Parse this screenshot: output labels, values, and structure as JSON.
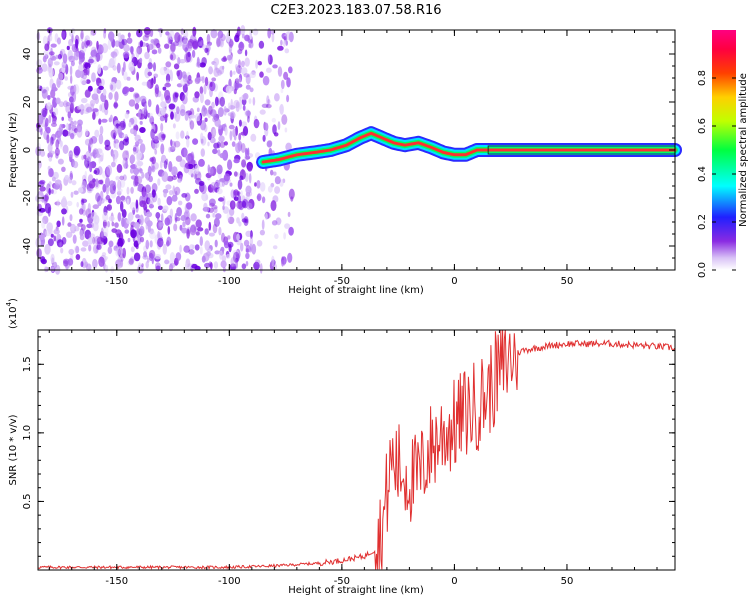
{
  "title": "C2E3.2023.183.07.58.R16",
  "chart_data": [
    {
      "type": "heatmap",
      "xlabel": "Height of straight line (km)",
      "ylabel": "Frequency (Hz)",
      "xlim": [
        -185,
        98
      ],
      "ylim": [
        -50,
        50
      ],
      "xticks": [
        -150,
        -100,
        -50,
        0,
        50
      ],
      "yticks": [
        -40,
        -20,
        0,
        20,
        40
      ],
      "noise_region_x": [
        -185,
        -72
      ],
      "signal_track": {
        "x": [
          -85,
          -78,
          -70,
          -62,
          -55,
          -48,
          -42,
          -37,
          -32,
          -27,
          -22,
          -16,
          -10,
          -5,
          0,
          5,
          10,
          15,
          20,
          40,
          60,
          80,
          98
        ],
        "y": [
          -5,
          -4,
          -2,
          -1,
          0,
          2,
          5,
          7,
          5,
          3,
          2,
          3,
          1,
          -1,
          -2,
          -2,
          0,
          0,
          0,
          0,
          0,
          0,
          0
        ]
      },
      "colorbar": {
        "label": "Normalized spectral amplitude",
        "ticks": [
          "0.0",
          "0.2",
          "0.4",
          "0.6",
          "0.8"
        ],
        "range": [
          0,
          1
        ]
      }
    },
    {
      "type": "line",
      "xlabel": "Height of straight line (km)",
      "ylabel": "SNR (10 * v/v)",
      "exponent_label": "(x10",
      "exponent_power": "4",
      "exponent_close": ")",
      "xlim": [
        -185,
        98
      ],
      "ylim": [
        0,
        1.75
      ],
      "xticks": [
        -150,
        -100,
        -50,
        0,
        50
      ],
      "ytick_labels": [
        "0.5",
        "1.0",
        "1.5"
      ],
      "ytick_values": [
        0.5,
        1.0,
        1.5
      ],
      "series": [
        {
          "color": "#e03030",
          "x": [
            -185,
            -150,
            -100,
            -80,
            -60,
            -50,
            -40,
            -35,
            -32,
            -30,
            -28,
            -25,
            -22,
            -18,
            -15,
            -12,
            -10,
            -5,
            0,
            5,
            10,
            15,
            20,
            25,
            30,
            40,
            50,
            60,
            70,
            80,
            90,
            98
          ],
          "y": [
            0.02,
            0.02,
            0.02,
            0.03,
            0.05,
            0.07,
            0.1,
            0.15,
            0.3,
            0.55,
            0.8,
            0.75,
            0.7,
            0.65,
            0.7,
            0.85,
            0.9,
            1.0,
            1.05,
            1.15,
            1.2,
            1.3,
            1.45,
            1.55,
            1.6,
            1.63,
            1.65,
            1.65,
            1.65,
            1.64,
            1.63,
            1.62
          ]
        }
      ]
    }
  ]
}
